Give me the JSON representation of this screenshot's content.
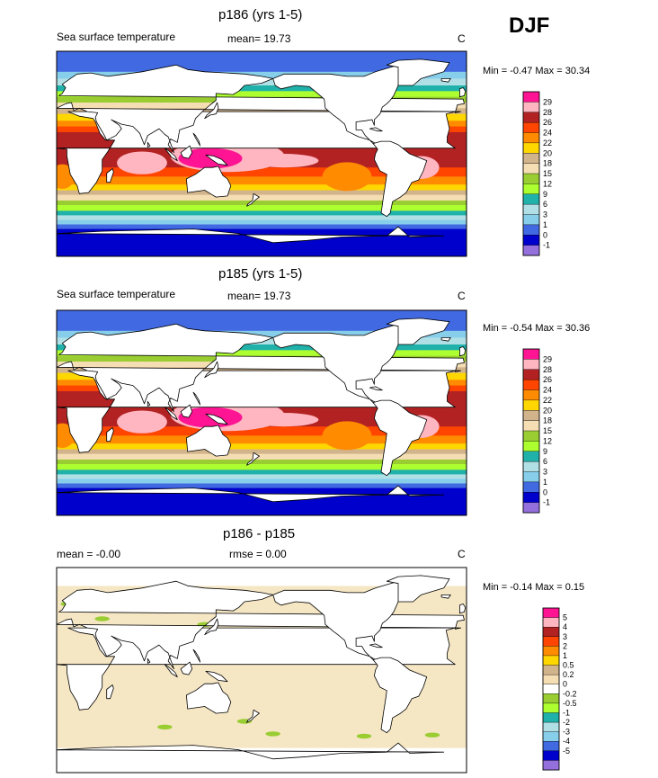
{
  "season": "DJF",
  "units": "C",
  "panels": [
    {
      "title": "p186 (yrs 1-5)",
      "left_label": "Sea surface temperature",
      "center_label": "mean=  19.73",
      "min_max": "Min =  -0.47 Max =  30.34",
      "colorbar_labels": [
        "29",
        "28",
        "26",
        "24",
        "22",
        "20",
        "18",
        "15",
        "12",
        "9",
        "6",
        "3",
        "1",
        "0",
        "-1"
      ]
    },
    {
      "title": "p185 (yrs 1-5)",
      "left_label": "Sea surface temperature",
      "center_label": "mean=  19.73",
      "min_max": "Min =  -0.54 Max =  30.36",
      "colorbar_labels": [
        "29",
        "28",
        "26",
        "24",
        "22",
        "20",
        "18",
        "15",
        "12",
        "9",
        "6",
        "3",
        "1",
        "0",
        "-1"
      ]
    },
    {
      "title": "p186 - p185",
      "left_label": "mean =  -0.00",
      "center_label": "rmse =   0.00",
      "min_max": "Min =  -0.14 Max =   0.15",
      "colorbar_labels": [
        "5",
        "4",
        "3",
        "2",
        "1",
        "0.5",
        "0.2",
        "0",
        "-0.2",
        "-0.5",
        "-1",
        "-2",
        "-3",
        "-4",
        "-5"
      ]
    }
  ],
  "colors": {
    "sst_scale": [
      "#ff1493",
      "#ffb6c1",
      "#b22222",
      "#ff4500",
      "#ff8c00",
      "#ffd700",
      "#d2b48c",
      "#f5deb3",
      "#9acd32",
      "#adff2f",
      "#20b2aa",
      "#b0e0e6",
      "#87ceeb",
      "#4169e1",
      "#0000cd",
      "#9370db"
    ],
    "diff_scale": [
      "#ff1493",
      "#ffb6c1",
      "#b22222",
      "#ff4500",
      "#ff8c00",
      "#ffd700",
      "#d2b48c",
      "#f5deb3",
      "#ffffff",
      "#9acd32",
      "#adff2f",
      "#20b2aa",
      "#b0e0e6",
      "#87ceeb",
      "#4169e1",
      "#0000cd",
      "#9370db"
    ],
    "diff_background": "#f5e6c4"
  },
  "chart_data": [
    {
      "type": "heatmap",
      "title": "p186 (yrs 1-5)",
      "variable": "Sea surface temperature",
      "season": "DJF",
      "units": "C",
      "mean": 19.73,
      "min": -0.47,
      "max": 30.34,
      "contour_levels": [
        -1,
        0,
        1,
        3,
        6,
        9,
        12,
        15,
        18,
        20,
        22,
        24,
        26,
        28,
        29
      ]
    },
    {
      "type": "heatmap",
      "title": "p185 (yrs 1-5)",
      "variable": "Sea surface temperature",
      "season": "DJF",
      "units": "C",
      "mean": 19.73,
      "min": -0.54,
      "max": 30.36,
      "contour_levels": [
        -1,
        0,
        1,
        3,
        6,
        9,
        12,
        15,
        18,
        20,
        22,
        24,
        26,
        28,
        29
      ]
    },
    {
      "type": "heatmap",
      "title": "p186 - p185",
      "units": "C",
      "mean": -0.0,
      "rmse": 0.0,
      "min": -0.14,
      "max": 0.15,
      "contour_levels": [
        -5,
        -4,
        -3,
        -2,
        -1,
        -0.5,
        -0.2,
        0,
        0.2,
        0.5,
        1,
        2,
        3,
        4,
        5
      ]
    }
  ]
}
